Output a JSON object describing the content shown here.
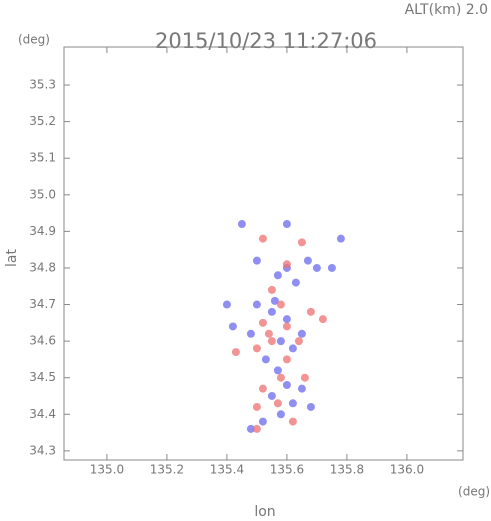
{
  "chart_data": {
    "type": "scatter",
    "title": "2015/10/23 11:27:06",
    "subtitle": "ALT(km) 2.0",
    "x_label": "lon",
    "y_label": "lat",
    "x_unit": "(deg)",
    "y_unit": "(deg)",
    "xlim": [
      134.857,
      136.187
    ],
    "ylim": [
      34.275,
      35.404
    ],
    "xticks": [
      {
        "value": 135,
        "label": "135.0"
      },
      135.2,
      135.4,
      135.6,
      135.8,
      {
        "value": 136,
        "label": "136.0"
      }
    ],
    "yticks": [
      34.3,
      34.4,
      34.5,
      34.6,
      34.7,
      34.8,
      34.9,
      {
        "value": 35,
        "label": "35.0"
      },
      35.1,
      35.2,
      35.3
    ],
    "grid": false,
    "series": [
      {
        "color": "#6a6aee",
        "x": [
          135.45,
          135.5,
          135.57,
          135.6,
          135.63,
          135.67,
          135.7,
          135.75,
          135.5,
          135.55,
          135.6,
          135.42,
          135.48,
          135.58,
          135.62,
          135.65,
          135.53,
          135.57,
          135.6,
          135.65,
          135.55,
          135.62,
          135.68,
          135.58,
          135.52,
          135.48,
          135.4,
          135.6,
          135.78,
          135.56
        ],
        "values": [
          34.92,
          34.82,
          34.78,
          34.8,
          34.76,
          34.82,
          34.8,
          34.8,
          34.7,
          34.68,
          34.66,
          34.64,
          34.62,
          34.6,
          34.58,
          34.62,
          34.55,
          34.52,
          34.48,
          34.47,
          34.45,
          34.43,
          34.42,
          34.4,
          34.38,
          34.36,
          34.7,
          34.92,
          34.88,
          34.71
        ]
      },
      {
        "color": "#ee7070",
        "x": [
          135.52,
          135.65,
          135.6,
          135.55,
          135.58,
          135.68,
          135.52,
          135.6,
          135.64,
          135.5,
          135.55,
          135.43,
          135.6,
          135.58,
          135.52,
          135.66,
          135.57,
          135.5,
          135.62,
          135.5,
          135.72,
          135.54
        ],
        "values": [
          34.88,
          34.87,
          34.81,
          34.74,
          34.7,
          34.68,
          34.65,
          34.64,
          34.6,
          34.58,
          34.6,
          34.57,
          34.55,
          34.5,
          34.47,
          34.5,
          34.43,
          34.42,
          34.38,
          34.36,
          34.66,
          34.62
        ]
      }
    ]
  }
}
